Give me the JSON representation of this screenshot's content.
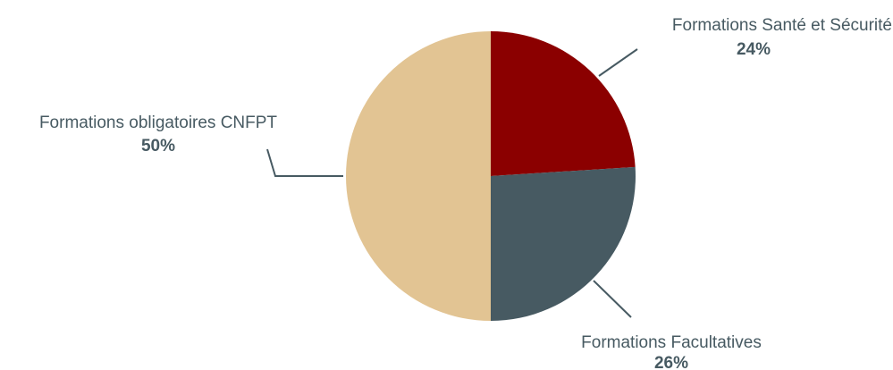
{
  "chart_data": {
    "type": "pie",
    "slices": [
      {
        "label": "Formations Santé et Sécurité",
        "value": 24,
        "value_label": "24%",
        "color": "#8b0000"
      },
      {
        "label": "Formations Facultatives",
        "value": 26,
        "value_label": "26%",
        "color": "#475a62"
      },
      {
        "label": "Formations obligatoires CNFPT",
        "value": 50,
        "value_label": "50%",
        "color": "#e2c493"
      }
    ],
    "legend": "none",
    "label_color": "#475a62",
    "leader_line_color": "#475a62"
  }
}
